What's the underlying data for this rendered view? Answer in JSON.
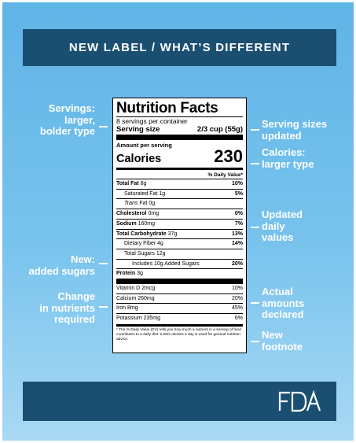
{
  "header": {
    "title": "NEW LABEL / WHAT’S DIFFERENT"
  },
  "label": {
    "title": "Nutrition Facts",
    "servings_per_container": "8 servings per container",
    "serving_size_label": "Serving size",
    "serving_size_value": "2/3 cup (55g)",
    "amount_per_serving": "Amount per serving",
    "calories_label": "Calories",
    "calories_value": "230",
    "dv_header": "% Daily Value*",
    "nutrients": [
      {
        "name": "Total Fat",
        "amount": "8g",
        "dv": "10%"
      },
      {
        "name": "Saturated Fat",
        "amount": "1g",
        "dv": "5%"
      },
      {
        "name_italic": "Trans",
        "name": "Fat",
        "amount": "0g",
        "dv": ""
      },
      {
        "name": "Cholesterol",
        "amount": "0mg",
        "dv": "0%"
      },
      {
        "name": "Sodium",
        "amount": "160mg",
        "dv": "7%"
      },
      {
        "name": "Total Carbohydrate",
        "amount": "37g",
        "dv": "13%"
      },
      {
        "name": "Dietary Fiber",
        "amount": "4g",
        "dv": "14%"
      },
      {
        "name": "Total Sugars",
        "amount": "12g",
        "dv": ""
      },
      {
        "name": "Includes 10g Added Sugars",
        "amount": "",
        "dv": "20%"
      },
      {
        "name": "Protein",
        "amount": "3g",
        "dv": ""
      }
    ],
    "vitamins": [
      {
        "name": "Vitamin D 2mcg",
        "dv": "10%"
      },
      {
        "name": "Calcium 260mg",
        "dv": "20%"
      },
      {
        "name": "Iron 8mg",
        "dv": "45%"
      },
      {
        "name": "Potassium 235mg",
        "dv": "6%"
      }
    ],
    "footnote": "* The % Daily Value (DV) tells you how much a nutrient in a serving of food contributes to a daily diet. 2,000 calories a day is used for general nutrition advice."
  },
  "annotations": {
    "left": [
      {
        "lines": [
          "Servings:",
          "larger,",
          "bolder type"
        ]
      },
      {
        "lines": [
          "New:",
          "added sugars"
        ]
      },
      {
        "lines": [
          "Change",
          "in nutrients",
          "required"
        ]
      }
    ],
    "right": [
      {
        "lines": [
          "Serving sizes",
          "updated"
        ]
      },
      {
        "lines": [
          "Calories:",
          "larger type"
        ]
      },
      {
        "lines": [
          "Updated",
          "daily",
          "values"
        ]
      },
      {
        "lines": [
          "Actual",
          "amounts",
          "declared"
        ]
      },
      {
        "lines": [
          "New",
          "footnote"
        ]
      }
    ]
  },
  "footer": {
    "logo_text": "FDA"
  },
  "colors": {
    "background_top": "#5fb4e6",
    "background_bottom": "#a9d9f4",
    "bar": "#1b4f72",
    "text_light": "#ffffff"
  }
}
